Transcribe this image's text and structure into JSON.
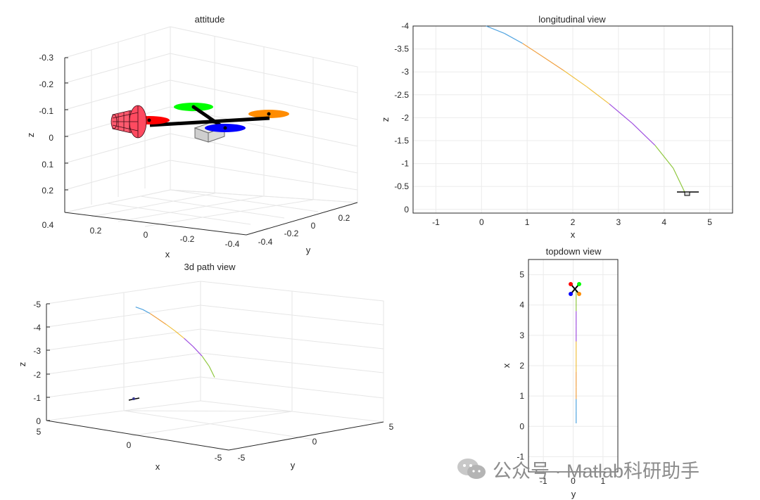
{
  "watermark": "公众号 · Matlab科研助手",
  "colors": {
    "axis": "#262626",
    "grid": "#e6e6e6",
    "rotor_front": "#ff0000",
    "rotor_left": "#00ff00",
    "rotor_right": "#ff8c00",
    "rotor_back": "#0000ff",
    "body": "#d9d9d9",
    "arm": "#000000",
    "path_segments": [
      "#4fa3e0",
      "#f0a040",
      "#f0c040",
      "#a050e0",
      "#90c840",
      "#c0c0c0"
    ]
  },
  "chart_data": [
    {
      "id": "attitude",
      "type": "3d-scene",
      "title": "attitude",
      "xlabel": "x",
      "ylabel": "y",
      "zlabel": "z",
      "xlim": [
        -0.4,
        0.4
      ],
      "ylim": [
        -0.4,
        0.4
      ],
      "zlim": [
        -0.3,
        0.3
      ],
      "z_reversed": true,
      "x_ticks": [
        "0.4",
        "0.2",
        "0",
        "-0.2",
        "-0.4"
      ],
      "y_ticks": [
        "-0.4",
        "-0.2",
        "0",
        "0.2"
      ],
      "z_ticks": [
        "-0.3",
        "-0.2",
        "-0.1",
        "0",
        "0.1",
        "0.2"
      ],
      "grid": true,
      "objects": [
        {
          "name": "front rotor",
          "color": "#ff0000"
        },
        {
          "name": "left rotor",
          "color": "#00ff00"
        },
        {
          "name": "right rotor",
          "color": "#ff8c00"
        },
        {
          "name": "back rotor",
          "color": "#0000ff"
        },
        {
          "name": "body",
          "color": "#d9d9d9"
        },
        {
          "name": "thrust cone",
          "color": "#ff0000"
        }
      ]
    },
    {
      "id": "longitudinal",
      "type": "line",
      "title": "longitudinal view",
      "xlabel": "x",
      "ylabel": "z",
      "xlim": [
        -1.5,
        5.5
      ],
      "ylim": [
        0.08,
        -4.0
      ],
      "x_ticks": [
        "-1",
        "0",
        "1",
        "2",
        "3",
        "4",
        "5"
      ],
      "y_ticks": [
        "-4",
        "-3.5",
        "-3",
        "-2.5",
        "-2",
        "-1.5",
        "-1",
        "-0.5",
        "0"
      ],
      "grid": true,
      "series": [
        {
          "x": [
            0.1,
            0.5,
            0.9,
            1.3,
            1.8,
            2.3,
            2.8,
            3.3,
            3.8,
            4.2,
            4.45
          ],
          "y": [
            -4.0,
            -3.84,
            -3.62,
            -3.36,
            -3.03,
            -2.68,
            -2.3,
            -1.88,
            -1.4,
            -0.9,
            -0.38
          ]
        }
      ],
      "vehicle_at": {
        "x": 4.5,
        "z": -0.32
      }
    },
    {
      "id": "path3d",
      "type": "line3d",
      "title": "3d path view",
      "xlabel": "x",
      "ylabel": "y",
      "zlabel": "z",
      "xlim": [
        -5,
        5
      ],
      "ylim": [
        -5,
        5
      ],
      "zlim": [
        -5,
        0
      ],
      "z_reversed": true,
      "x_ticks": [
        "5",
        "0",
        "-5"
      ],
      "y_ticks": [
        "-5",
        "0",
        "5"
      ],
      "z_ticks": [
        "-5",
        "-4",
        "-3",
        "-2",
        "-1",
        "0"
      ],
      "grid": true,
      "series": [
        {
          "x": [
            0.1,
            0.5,
            0.9,
            1.3,
            1.8,
            2.3,
            2.8,
            3.3,
            3.8,
            4.2,
            4.5
          ],
          "y": [
            0.1,
            0.1,
            0.1,
            0.1,
            0.1,
            0.1,
            0.1,
            0.1,
            0.1,
            0.1,
            0.1
          ],
          "z": [
            -4.0,
            -3.84,
            -3.62,
            -3.36,
            -3.03,
            -2.68,
            -2.3,
            -1.88,
            -1.4,
            -0.9,
            -0.38
          ]
        }
      ]
    },
    {
      "id": "topdown",
      "type": "line",
      "title": "topdown view",
      "xlabel": "y",
      "ylabel": "x",
      "xlim": [
        -1.5,
        1.5
      ],
      "ylim": [
        -1.5,
        5.5
      ],
      "x_ticks": [
        "-1",
        "0",
        "1"
      ],
      "y_ticks": [
        "-1",
        "0",
        "1",
        "2",
        "3",
        "4",
        "5"
      ],
      "grid": true,
      "series": [
        {
          "x": [
            0.1,
            0.1,
            0.1,
            0.1,
            0.1,
            0.1,
            0.1,
            0.1,
            0.1,
            0.1,
            0.1
          ],
          "y": [
            0.1,
            0.5,
            0.9,
            1.3,
            1.8,
            2.3,
            2.8,
            3.3,
            3.8,
            4.2,
            4.5
          ]
        }
      ],
      "vehicle_at": {
        "y": 0.1,
        "x": 4.5
      }
    }
  ]
}
